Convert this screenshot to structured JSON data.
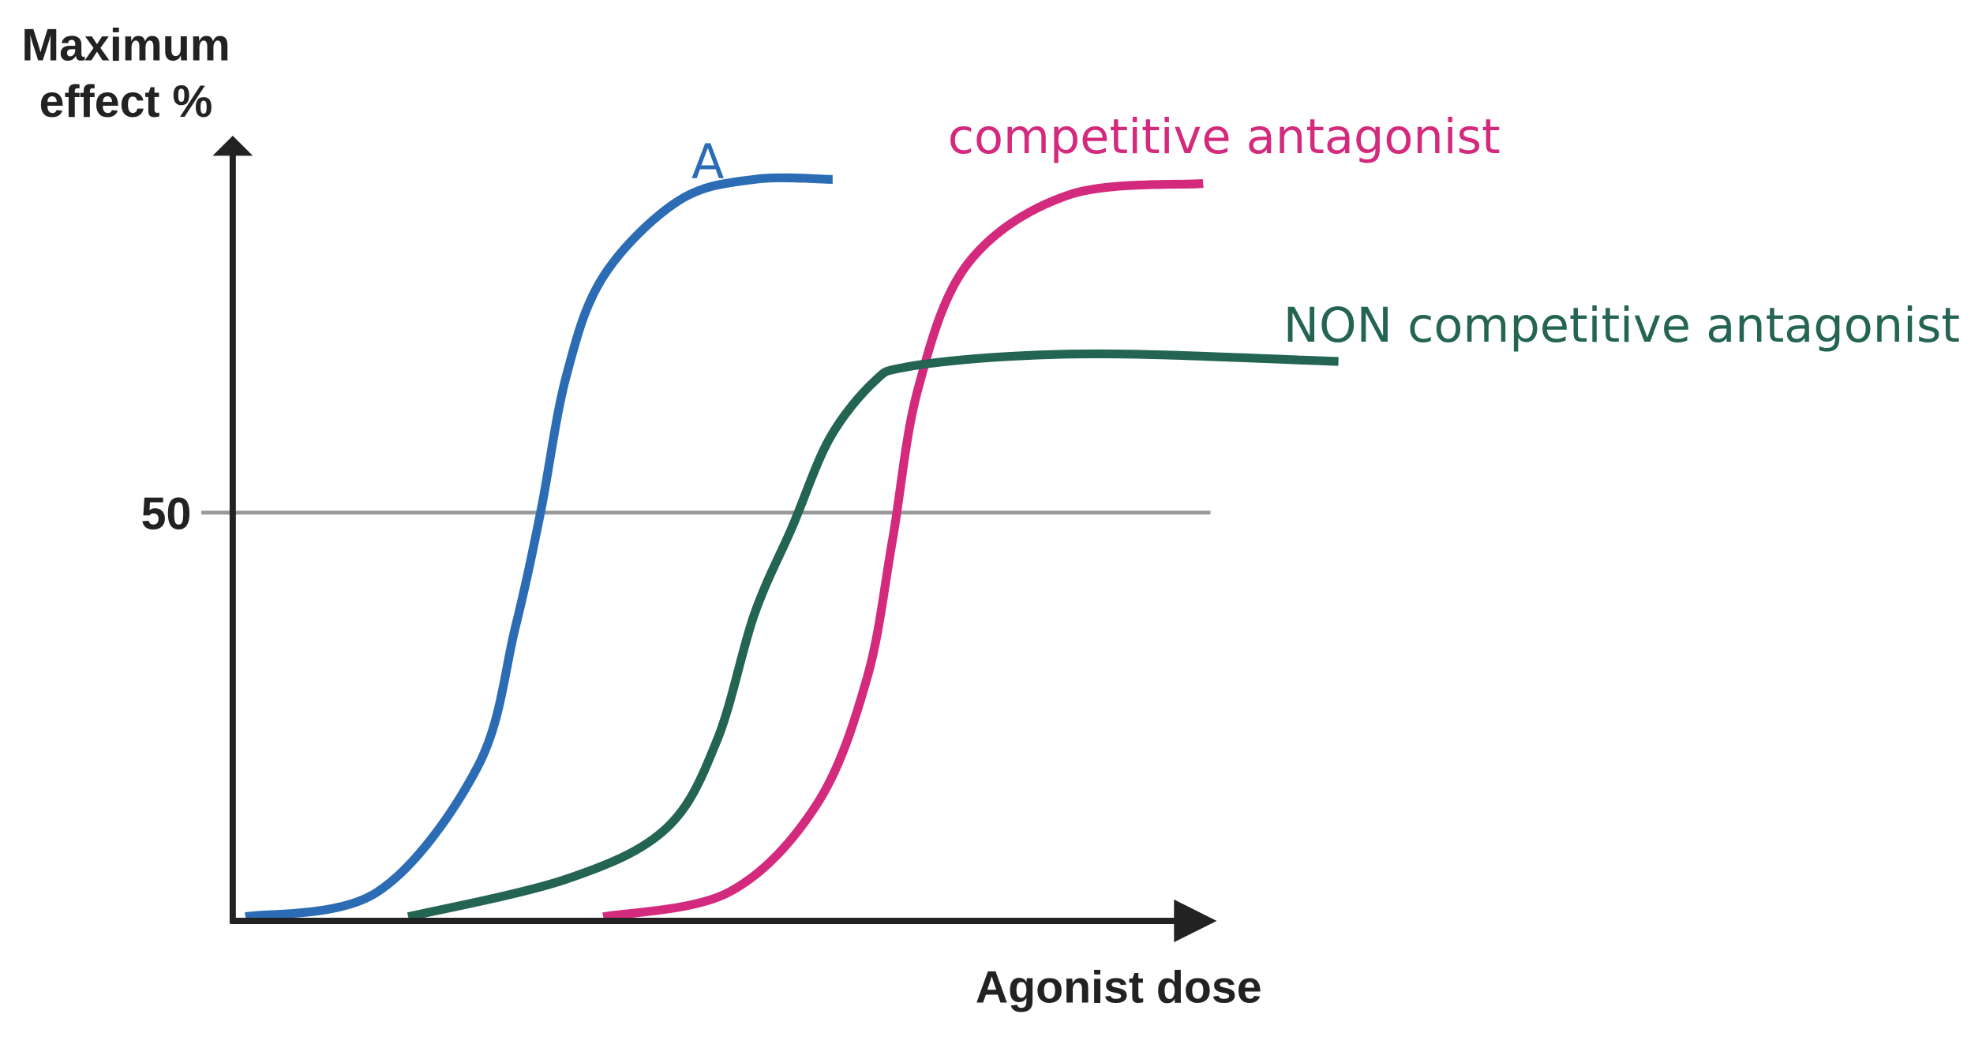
{
  "chart_data": {
    "type": "line",
    "title": "",
    "ylabel_lines": [
      "Maximum",
      "effect %"
    ],
    "xlabel": "Agonist dose",
    "xlim": [
      0,
      100
    ],
    "ylim": [
      0,
      100
    ],
    "y_ticks": [
      {
        "value": 50,
        "label": "50"
      }
    ],
    "reference_line": {
      "y": 50,
      "color": "#999999"
    },
    "grid": false,
    "colors": {
      "axis": "#222222"
    },
    "series": [
      {
        "name": "A",
        "color": "#2b6cb5",
        "x": [
          1.3,
          14.7,
          25,
          28.8,
          31.4,
          34,
          37.8,
          45.5,
          53.2,
          61.2
        ],
        "y": [
          0.5,
          3.5,
          18.9,
          35.8,
          50,
          66.6,
          78.9,
          88.2,
          90.8,
          90.8
        ]
      },
      {
        "name": "competitive antagonist",
        "color": "#d42a7e",
        "x": [
          37.8,
          50.6,
          59.6,
          64.7,
          67.3,
          69.9,
          75,
          85.3,
          99
        ],
        "y": [
          0.5,
          3.5,
          14.3,
          29.7,
          46.6,
          65.1,
          80.5,
          88.9,
          90.3
        ]
      },
      {
        "name": "NON competitive antagonist",
        "color": "#236452",
        "x": [
          17.9,
          34,
          44.2,
          49.4,
          53.2,
          57.1,
          60.9,
          65.4,
          68.6,
          78.8,
          91.7,
          112.8
        ],
        "y": [
          0.5,
          5.1,
          11.3,
          22.1,
          37.5,
          48.3,
          59.1,
          66,
          67.8,
          69.1,
          69.4,
          68.5
        ]
      }
    ]
  }
}
